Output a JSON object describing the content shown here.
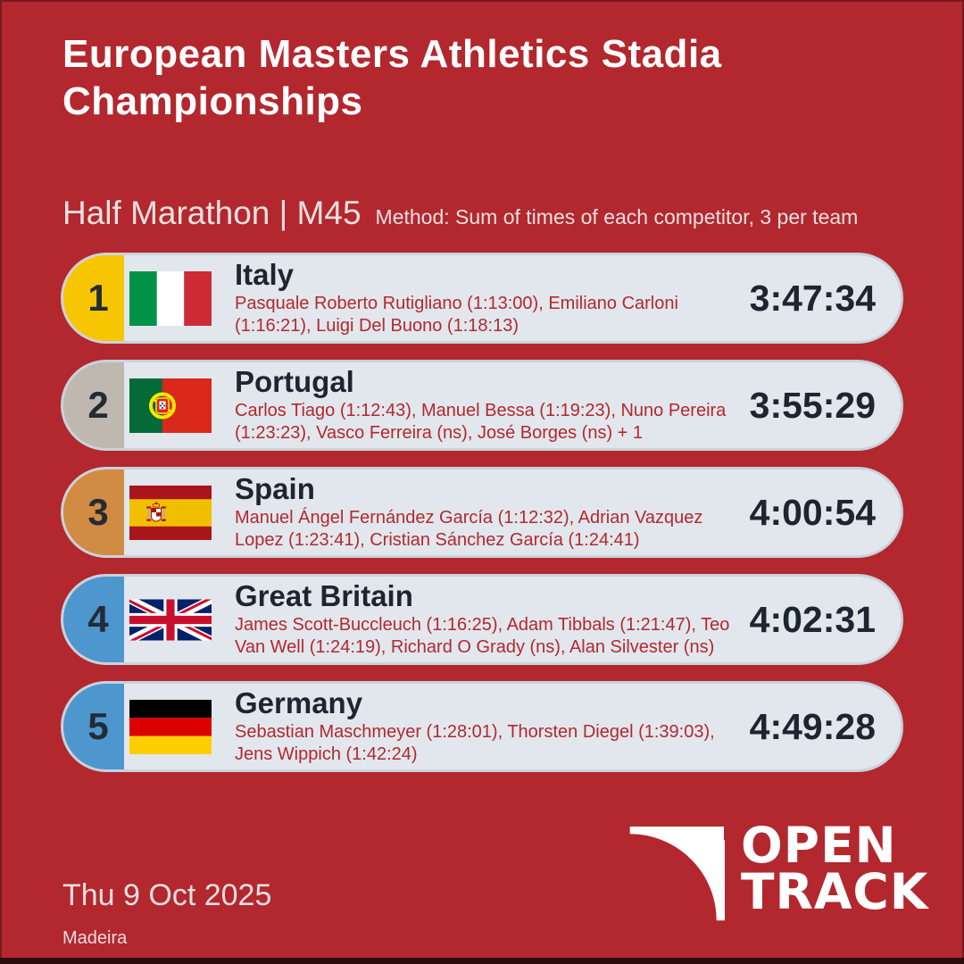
{
  "header": {
    "title": "European Masters Athletics Stadia Championships",
    "event": "Half Marathon | M45",
    "method": "Method: Sum of times of each competitor, 3 per team"
  },
  "results": [
    {
      "rank": "1",
      "country": "Italy",
      "flag": "italy",
      "athletes": "Pasquale Roberto Rutigliano (1:13:00), Emiliano Carloni (1:16:21), Luigi Del Buono (1:18:13)",
      "total": "3:47:34",
      "badge_color": "#F8C502"
    },
    {
      "rank": "2",
      "country": "Portugal",
      "flag": "portugal",
      "athletes": "Carlos Tiago (1:12:43), Manuel Bessa (1:19:23), Nuno Pereira (1:23:23), Vasco Ferreira (ns), José Borges (ns) + 1",
      "total": "3:55:29",
      "badge_color": "#BEB8B0"
    },
    {
      "rank": "3",
      "country": "Spain",
      "flag": "spain",
      "athletes": "Manuel Ángel Fernández García (1:12:32), Adrian Vazquez Lopez (1:23:41), Cristian Sánchez García (1:24:41)",
      "total": "4:00:54",
      "badge_color": "#D18B42"
    },
    {
      "rank": "4",
      "country": "Great Britain",
      "flag": "great-britain",
      "athletes": "James Scott-Buccleuch (1:16:25), Adam Tibbals (1:21:47), Teo Van Well (1:24:19), Richard O Grady (ns), Alan Silvester (ns)",
      "total": "4:02:31",
      "badge_color": "#4E96CE"
    },
    {
      "rank": "5",
      "country": "Germany",
      "flag": "germany",
      "athletes": "Sebastian Maschmeyer (1:28:01), Thorsten Diegel (1:39:03), Jens Wippich (1:42:24)",
      "total": "4:49:28",
      "badge_color": "#4E96CE"
    }
  ],
  "footer": {
    "date": "Thu 9 Oct 2025",
    "location": "Madeira",
    "logo_line1": "OPEN",
    "logo_line2": "TRACK"
  },
  "colors": {
    "background": "#B2282E",
    "row_background": "#E1E7EC",
    "row_border": "#C9D2DB",
    "gold": "#F8C502",
    "silver": "#BEB8B0",
    "bronze": "#D18B42",
    "blue": "#4E96CE",
    "dark_text": "#1D2630",
    "athlete_text": "#B3282E",
    "light_text": "#E7DEDD"
  }
}
